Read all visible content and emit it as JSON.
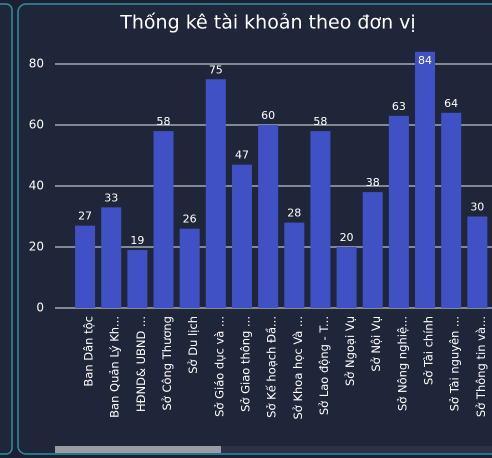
{
  "chart_data": {
    "type": "bar",
    "title": "Thống kê tài khoản theo đơn vị",
    "categories": [
      "Ban Dân tộc",
      "Ban Quản Lý Kh...",
      "HĐND& UBND ...",
      "Sở Công Thương",
      "Sở Du lịch",
      "Sở Giáo dục và ...",
      "Sở Giao thông ...",
      "Sở Kế hoạch Đầ...",
      "Sở Khoa học Và ...",
      "Sở Lao động - T...",
      "Sở Ngoại Vụ",
      "Sở Nội Vụ",
      "Sở Nông nghiệ...",
      "Sở Tài chính",
      "Sở Tài nguyên ...",
      "Sở Thông tin và..."
    ],
    "values": [
      27,
      33,
      19,
      58,
      26,
      75,
      47,
      60,
      28,
      58,
      20,
      38,
      63,
      84,
      64,
      30
    ],
    "color": "#3f51c4",
    "ylim": [
      0,
      85
    ],
    "yticks": [
      0,
      20,
      40,
      60,
      80
    ],
    "grid": true
  }
}
